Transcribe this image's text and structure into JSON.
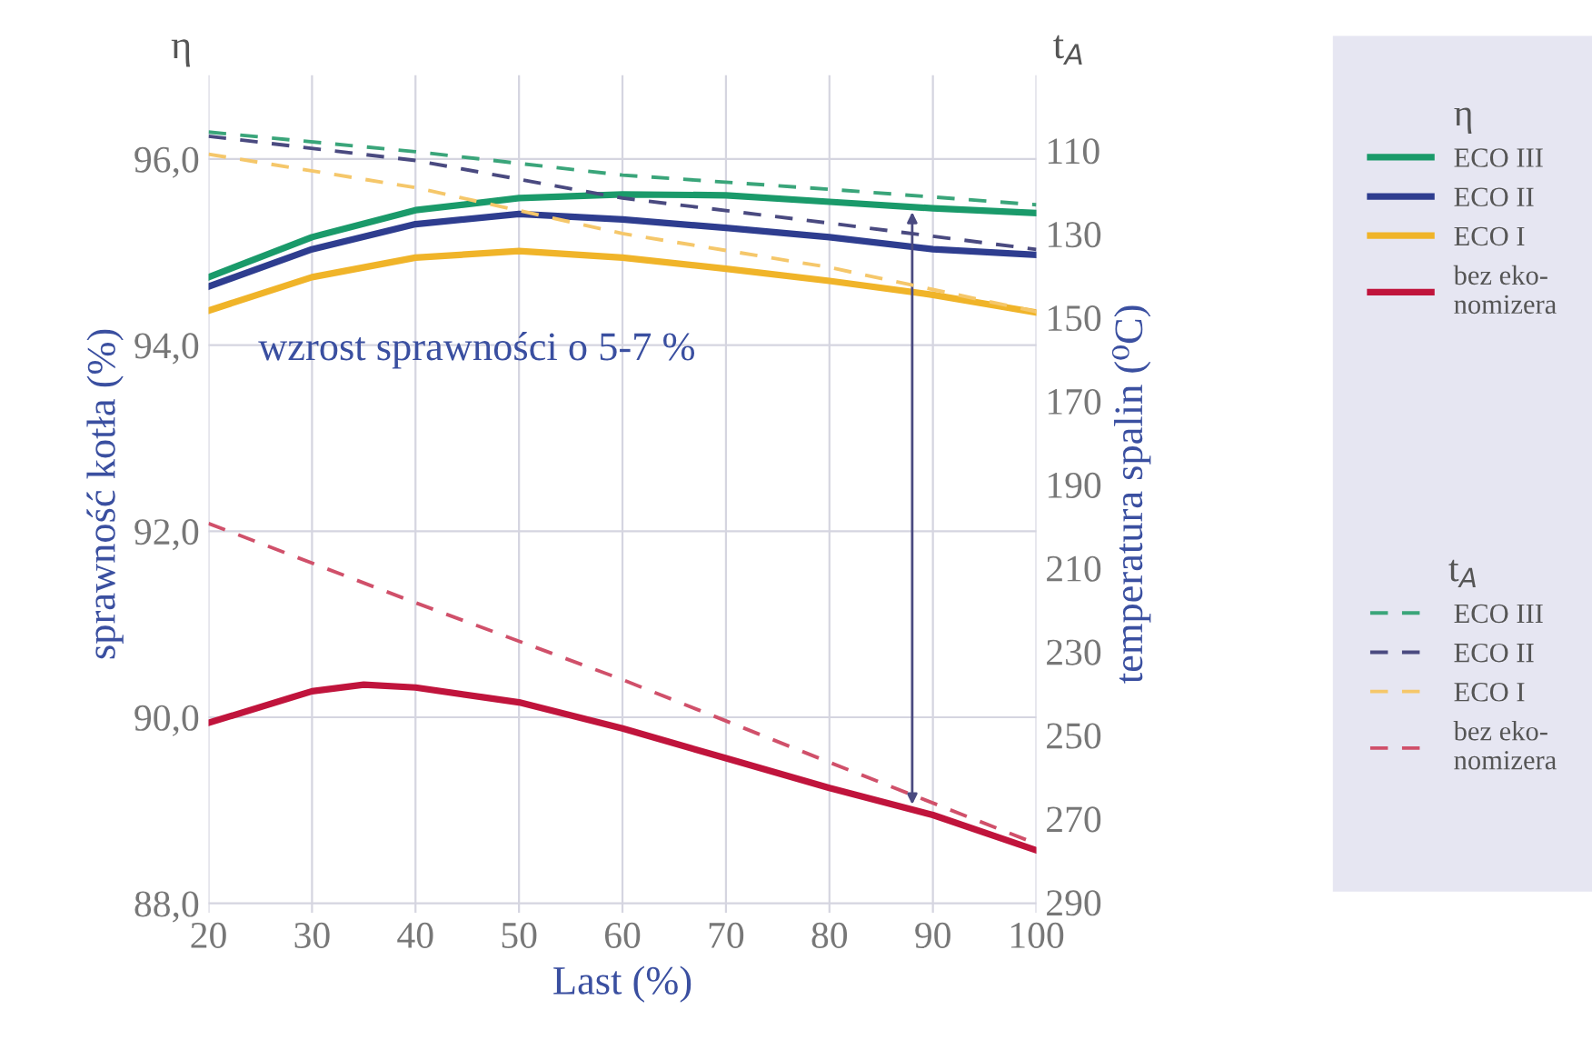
{
  "chart_data": {
    "type": "line",
    "xlabel": "Last (%)",
    "ylabel": "sprawność kotła (%)",
    "y2label": "temperatura spalin (⁰C)",
    "legend_title": [
      "η",
      "t$_{A}$"
    ],
    "x": [
      20,
      30,
      40,
      50,
      60,
      70,
      80,
      90,
      100
    ],
    "series": [
      {
        "name": "ECO III",
        "color": "#1a9a6a",
        "line_style": "solid",
        "values": [
          94.73,
          95.16,
          95.45,
          95.58,
          95.62,
          95.61,
          95.54,
          95.47,
          95.42
        ]
      },
      {
        "name": "ECO II",
        "color": "#2e3d8f",
        "line_style": "solid",
        "values": [
          94.63,
          95.03,
          95.3,
          95.41,
          95.35,
          95.26,
          95.16,
          95.03,
          94.97
        ]
      },
      {
        "name": "ECO I",
        "color": "#f0b429",
        "line_style": "solid",
        "values": [
          94.37,
          94.73,
          94.94,
          95.01,
          94.94,
          94.82,
          94.69,
          94.54,
          94.35
        ]
      },
      {
        "name": "bez eko-\nnomizera",
        "color": "#c0143c",
        "line_style": "solid",
        "x": [
          20,
          30,
          35,
          40,
          50,
          60,
          70,
          80,
          90,
          100
        ],
        "values": [
          89.94,
          90.28,
          90.35,
          90.32,
          90.16,
          89.88,
          89.56,
          89.24,
          88.95,
          88.57
        ]
      },
      {
        "name": "ECO III",
        "color": "#3aa57a",
        "line_style": "dashed",
        "axis": "y2",
        "x": [
          20,
          40,
          60,
          80,
          100
        ],
        "values": [
          105.6,
          110.3,
          115.9,
          119.3,
          123
        ]
      },
      {
        "name": "ECO II",
        "color": "#4a4a80",
        "line_style": "dashed",
        "axis": "y2",
        "x": [
          20,
          40,
          60,
          80,
          100
        ],
        "values": [
          106.6,
          112.4,
          121.4,
          127.4,
          133.7
        ]
      },
      {
        "name": "ECO I",
        "color": "#f5c76a",
        "line_style": "dashed",
        "axis": "y2",
        "x": [
          20,
          40,
          60,
          80,
          100
        ],
        "values": [
          110.9,
          118.9,
          129.9,
          138,
          148.6
        ]
      },
      {
        "name": "bez eko-\nnomizera",
        "color": "#d0506a",
        "line_style": "dashed",
        "axis": "y2",
        "x": [
          20,
          40,
          60,
          80,
          100
        ],
        "values": [
          199.3,
          218.3,
          236.7,
          256.5,
          276
        ]
      }
    ],
    "xlim": [
      20,
      100
    ],
    "xticks": [
      20,
      30,
      40,
      50,
      60,
      70,
      80,
      90,
      100
    ],
    "ylim": [
      87.9,
      96.9
    ],
    "yticks": [
      {
        "value": 88,
        "label": "88,0"
      },
      {
        "value": 90,
        "label": "90,0"
      },
      {
        "value": 92,
        "label": "92,0"
      },
      {
        "value": 94,
        "label": "94,0"
      },
      {
        "value": 96,
        "label": "96,0"
      }
    ],
    "y2lim": [
      292.5,
      92
    ],
    "y2ticks": [
      110,
      130,
      150,
      170,
      190,
      210,
      230,
      250,
      270,
      290
    ],
    "annotations": [
      "wzrost sprawności o 5-7 %"
    ],
    "grid": true,
    "legend": "right",
    "marker": "none"
  }
}
